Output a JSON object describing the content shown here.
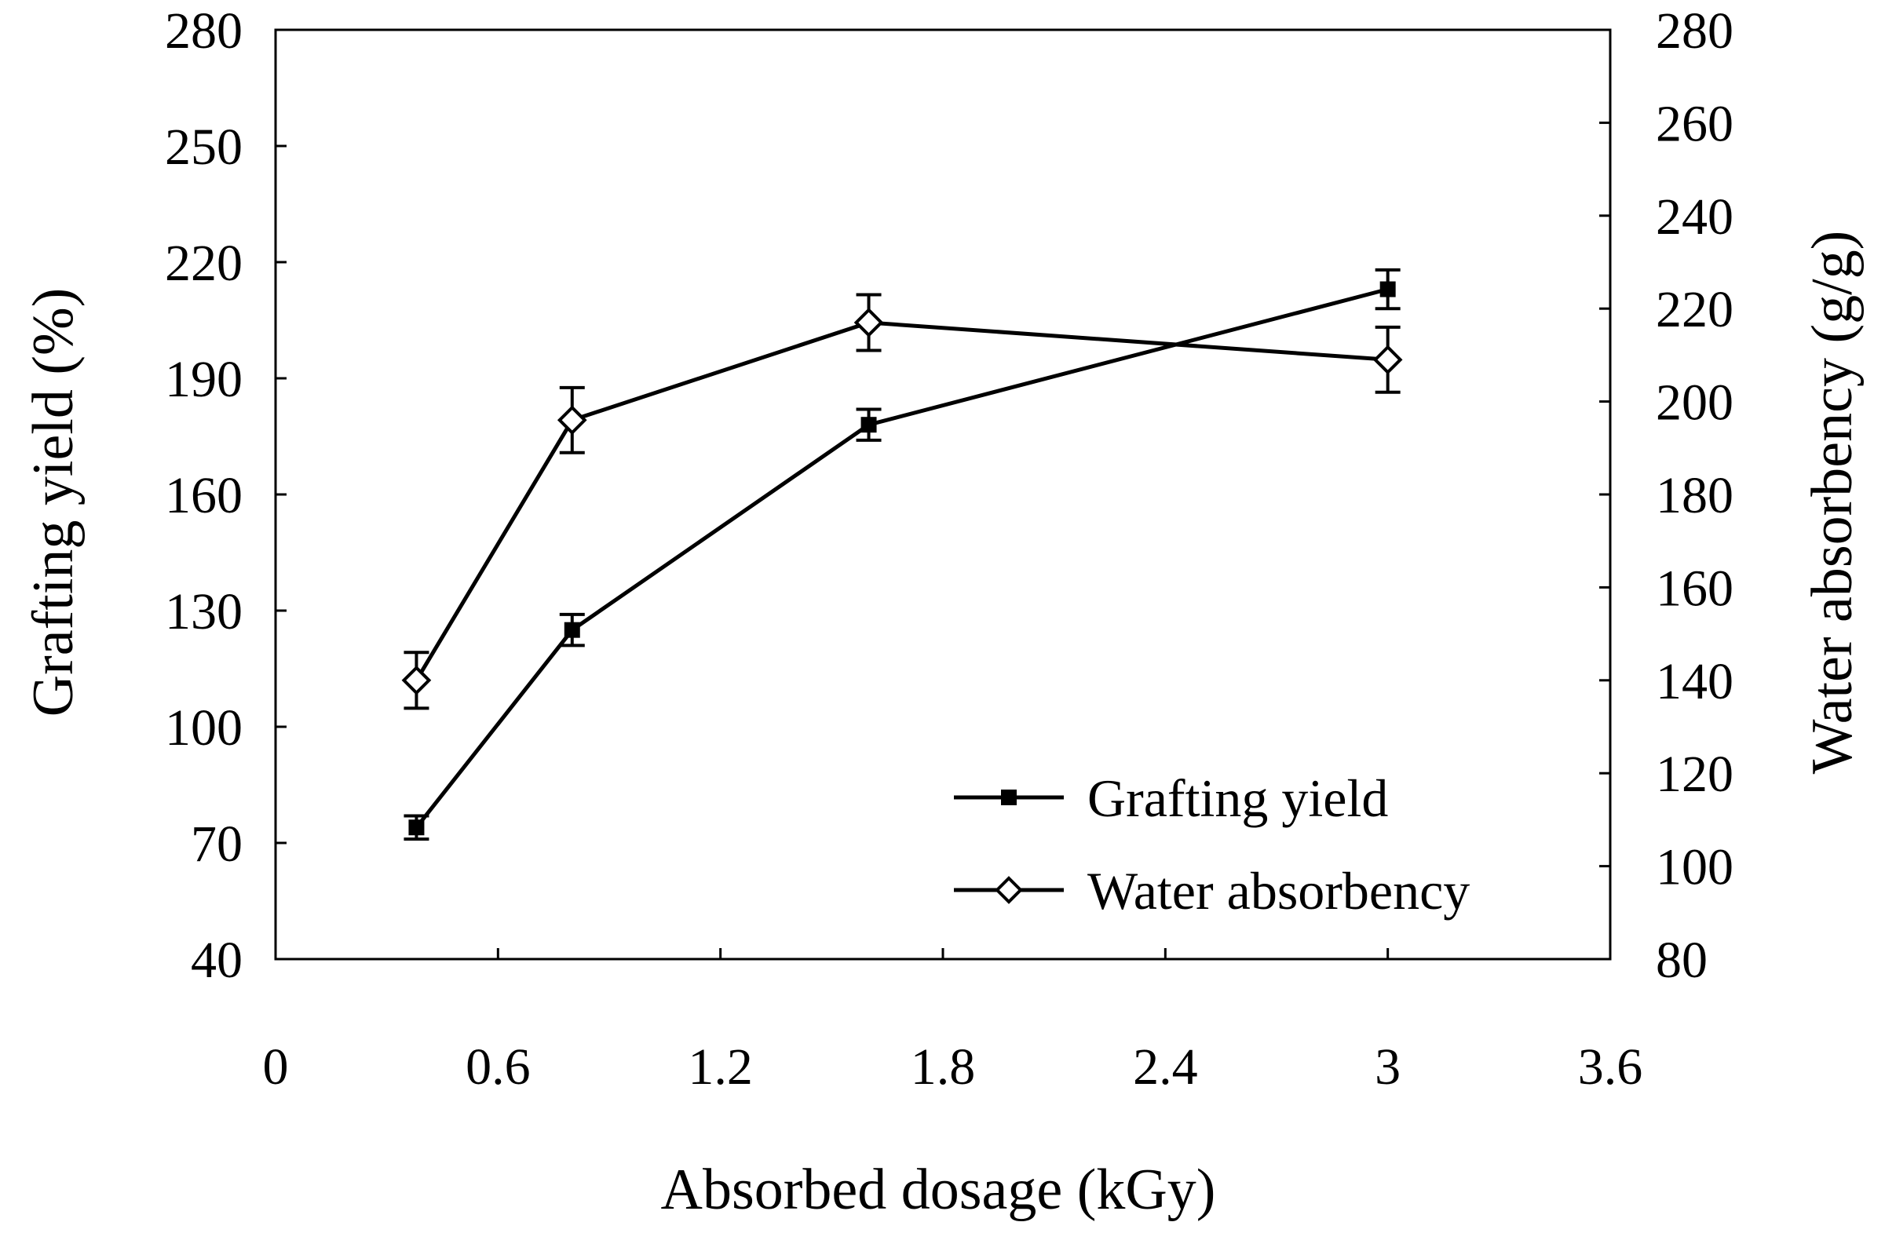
{
  "chart_data": {
    "type": "line",
    "title": "",
    "xlabel": "Absorbed dosage (kGy)",
    "ylabel": "Grafting yield (%)",
    "y2label": "Water absorbency (g/g)",
    "xlim": [
      0,
      3.6
    ],
    "ylim": [
      40,
      280
    ],
    "y2lim": [
      80,
      280
    ],
    "xticks": [
      "0",
      "0.6",
      "1.2",
      "1.8",
      "2.4",
      "3",
      "3.6"
    ],
    "yticks": [
      "40",
      "70",
      "100",
      "130",
      "160",
      "190",
      "220",
      "250",
      "280"
    ],
    "y2ticks": [
      "80",
      "100",
      "120",
      "140",
      "160",
      "180",
      "200",
      "220",
      "240",
      "260",
      "280"
    ],
    "grid": false,
    "legend_position": "bottom-right",
    "series": [
      {
        "name": "Grafting yield",
        "axis": "left",
        "marker": "filled-square",
        "x": [
          0.38,
          0.8,
          1.6,
          3.0
        ],
        "y": [
          74,
          125,
          178,
          213
        ],
        "error": [
          3,
          4,
          4,
          5
        ],
        "color": "#000000"
      },
      {
        "name": "Water absorbency",
        "axis": "right",
        "marker": "open-diamond",
        "x": [
          0.38,
          0.8,
          1.6,
          3.0
        ],
        "y": [
          140,
          196,
          217,
          209
        ],
        "error": [
          6,
          7,
          6,
          7
        ],
        "color": "#000000"
      }
    ]
  }
}
